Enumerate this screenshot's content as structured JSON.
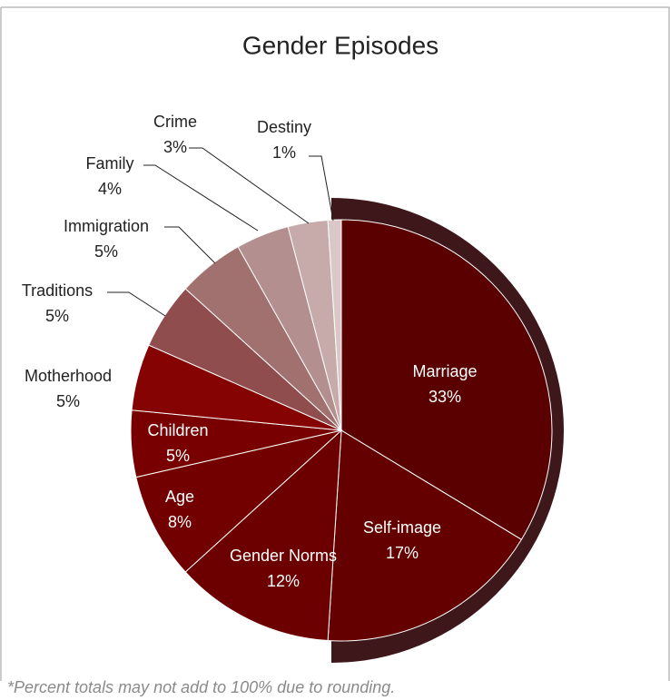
{
  "chart_data": {
    "type": "pie",
    "title": "Gender Episodes",
    "categories": [
      "Marriage",
      "Self-image",
      "Gender Norms",
      "Age",
      "Children",
      "Motherhood",
      "Traditions",
      "Immigration",
      "Family",
      "Crime",
      "Destiny"
    ],
    "values": [
      33,
      17,
      12,
      8,
      5,
      5,
      5,
      5,
      4,
      3,
      1
    ],
    "value_labels": [
      "33%",
      "17%",
      "12%",
      "8%",
      "5%",
      "5%",
      "5%",
      "5%",
      "4%",
      "3%",
      "1%"
    ],
    "colors": [
      "#5a0000",
      "#640000",
      "#6c0000",
      "#720000",
      "#790000",
      "#850303",
      "#8f4d4d",
      "#a1716f",
      "#b48f8f",
      "#c7abab",
      "#dac8c8"
    ],
    "note": "*Percent totals may not add to 100% due to rounding."
  }
}
